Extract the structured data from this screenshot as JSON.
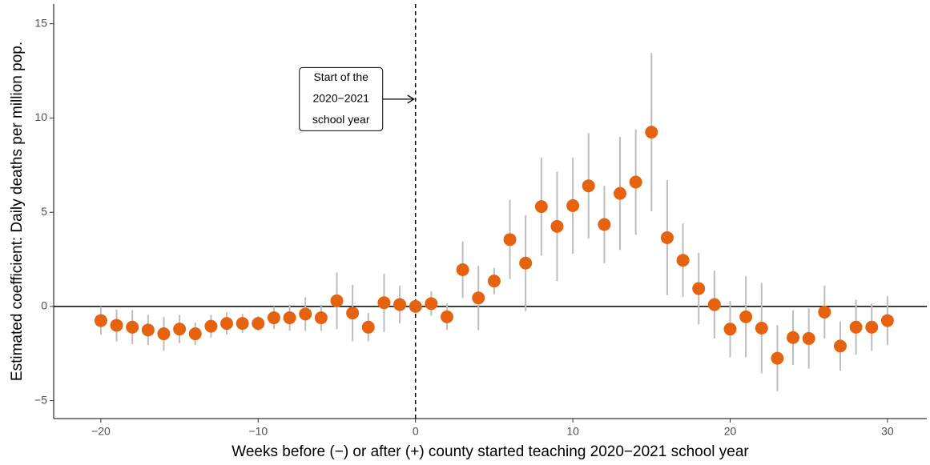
{
  "chart_data": {
    "type": "errorscatter",
    "x_label": "Weeks before (−) or after (+) county started teaching 2020−2021 school year",
    "y_label": "Estimated coefficient: Daily deaths per million pop.",
    "x": [
      -20,
      -19,
      -18,
      -17,
      -16,
      -15,
      -14,
      -13,
      -12,
      -11,
      -10,
      -9,
      -8,
      -7,
      -6,
      -5,
      -4,
      -3,
      -2,
      -1,
      0,
      1,
      2,
      3,
      4,
      5,
      6,
      7,
      8,
      9,
      10,
      11,
      12,
      13,
      14,
      15,
      16,
      17,
      18,
      19,
      20,
      21,
      22,
      23,
      24,
      25,
      26,
      27,
      28,
      29,
      30
    ],
    "values": [
      -0.75,
      -1.0,
      -1.1,
      -1.25,
      -1.45,
      -1.2,
      -1.45,
      -1.05,
      -0.9,
      -0.9,
      -0.9,
      -0.6,
      -0.6,
      -0.4,
      -0.6,
      0.3,
      -0.35,
      -1.1,
      0.2,
      0.1,
      0,
      0.15,
      -0.55,
      1.95,
      0.45,
      1.35,
      3.55,
      2.3,
      5.3,
      4.25,
      5.35,
      6.4,
      4.35,
      6.0,
      6.6,
      9.25,
      3.65,
      2.45,
      0.95,
      0.1,
      -1.2,
      -0.55,
      -1.15,
      -2.75,
      -1.65,
      -1.7,
      -0.3,
      -2.1,
      -1.1,
      -1.1,
      -0.75
    ],
    "errors": [
      0.75,
      0.85,
      0.9,
      0.8,
      0.9,
      0.75,
      0.6,
      0.6,
      0.6,
      0.5,
      0.4,
      0.6,
      0.7,
      0.9,
      0.7,
      1.5,
      1.5,
      0.75,
      1.55,
      1.0,
      0,
      0.65,
      0.7,
      1.5,
      1.7,
      0.7,
      2.1,
      2.55,
      2.6,
      2.9,
      2.55,
      2.8,
      2.05,
      3.0,
      2.8,
      4.2,
      3.05,
      1.95,
      1.9,
      1.8,
      1.5,
      2.15,
      2.4,
      1.75,
      1.45,
      1.6,
      1.4,
      1.3,
      1.45,
      1.25,
      1.3
    ],
    "color": "#e5630e",
    "error_color": "#bdbdbd",
    "xlim": [
      -23,
      32.5
    ],
    "ylim": [
      -5.95,
      16.05
    ],
    "xticks": [
      {
        "value": -20,
        "label": "−20"
      },
      {
        "value": -10,
        "label": "−10"
      },
      0,
      10,
      20,
      30
    ],
    "yticks": [
      {
        "value": -5,
        "label": "−5"
      },
      0,
      5,
      10,
      15
    ],
    "hline": 0,
    "vline": 0,
    "annotation": {
      "lines": [
        "Start of the",
        "2020−2021",
        "school year"
      ],
      "x": 0,
      "y": 11
    }
  }
}
